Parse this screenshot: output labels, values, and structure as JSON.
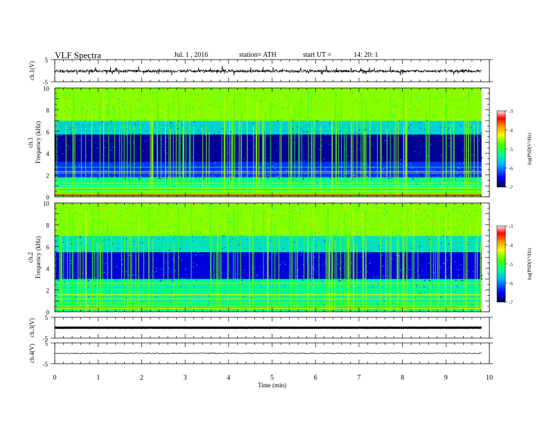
{
  "header": {
    "title": "VLF  Spectra",
    "date": "Jul.  1  , 2016",
    "station": "station= ATH",
    "start_label": "start  UT  =",
    "start_time": "14: 20: 1"
  },
  "chart_data": [
    {
      "type": "line",
      "panel": "waveform",
      "ylabel": "ch.1(V)",
      "yticks": [
        "5",
        "-5"
      ],
      "ylim": [
        -5,
        5
      ],
      "xlim": [
        0,
        10
      ],
      "x_end": 9.82,
      "baseline": -0.2,
      "noise_amplitude": 0.6,
      "spike_amplitude": 2.2
    },
    {
      "type": "heatmap",
      "panel": "spectrogram",
      "channel": "ch.1",
      "ylabel": "Frequency  (kHz)",
      "ylim": [
        0,
        10
      ],
      "yticks": [
        "0",
        "2",
        "4",
        "6",
        "8",
        "10"
      ],
      "xlim": [
        0,
        10
      ],
      "x_end": 9.82,
      "colorbar": {
        "label": "log(PSD(V²/Hz)",
        "range": [
          -7,
          -3
        ],
        "ticks": [
          "-3",
          "-4",
          "-5",
          "-6",
          "-7"
        ]
      },
      "bands": [
        {
          "from": 0.0,
          "to": 0.4,
          "level": -4.6
        },
        {
          "from": 0.4,
          "to": 1.6,
          "level": -5.3
        },
        {
          "from": 1.6,
          "to": 3.1,
          "level": -6.3
        },
        {
          "from": 3.1,
          "to": 5.6,
          "level": -6.8
        },
        {
          "from": 5.6,
          "to": 7.0,
          "level": -5.6
        },
        {
          "from": 7.0,
          "to": 10.0,
          "level": -4.6
        }
      ]
    },
    {
      "type": "heatmap",
      "panel": "spectrogram",
      "channel": "ch.2",
      "ylabel": "Frequency  (kHz)",
      "ylim": [
        0,
        10
      ],
      "yticks": [
        "0",
        "2",
        "4",
        "6",
        "8",
        "10"
      ],
      "xlim": [
        0,
        10
      ],
      "x_end": 9.82,
      "colorbar": {
        "label": "log(PSD(V²/Hz)",
        "range": [
          -7,
          -3
        ],
        "ticks": [
          "-3",
          "-4",
          "-5",
          "-6",
          "-7"
        ]
      },
      "bands": [
        {
          "from": 0.0,
          "to": 0.8,
          "level": -5.2
        },
        {
          "from": 0.8,
          "to": 2.8,
          "level": -5.4
        },
        {
          "from": 2.8,
          "to": 5.4,
          "level": -6.6
        },
        {
          "from": 5.4,
          "to": 7.0,
          "level": -5.5
        },
        {
          "from": 7.0,
          "to": 10.0,
          "level": -4.6
        }
      ]
    },
    {
      "type": "line",
      "panel": "waveform",
      "ylabel": "ch.3(V)",
      "yticks": [
        "5",
        "-5"
      ],
      "ylim": [
        -5,
        5
      ],
      "xlim": [
        0,
        10
      ],
      "x_end": 9.82,
      "baseline": 0.0,
      "noise_amplitude": 0.05,
      "spike_amplitude": 0.3
    },
    {
      "type": "line",
      "panel": "waveform",
      "ylabel": "ch.4(V)",
      "yticks": [
        "5",
        "-5"
      ],
      "ylim": [
        -5,
        5
      ],
      "xlim": [
        0,
        10
      ],
      "x_end": 9.82,
      "baseline": 0.0,
      "noise_amplitude": 0.2,
      "spike_amplitude": 0.2
    }
  ],
  "x_axis": {
    "label": "Time  (min)",
    "ticks": [
      "0",
      "1",
      "2",
      "3",
      "4",
      "5",
      "6",
      "7",
      "8",
      "9",
      "10"
    ],
    "range": [
      0,
      10
    ]
  }
}
